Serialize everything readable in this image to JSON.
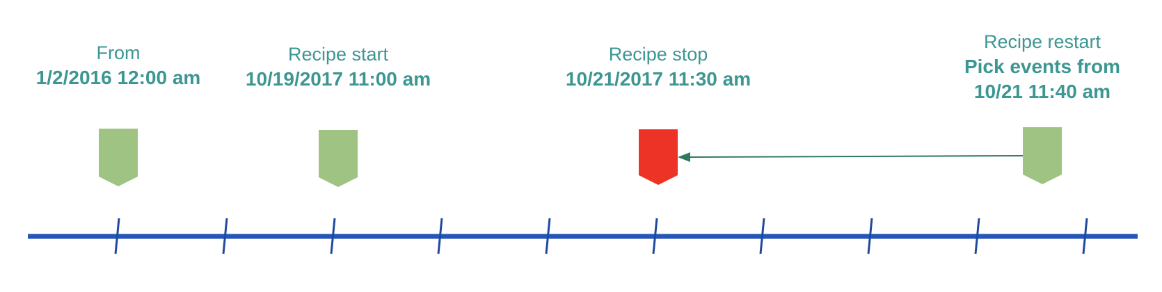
{
  "colors": {
    "text": "#3d9692",
    "timeline": "#2754b8",
    "tick": "#1e4a9e",
    "marker_normal": "#9ec383",
    "marker_stop": "#ec3325",
    "arrow": "#2d7a5c"
  },
  "timeline": {
    "tick_count": 10
  },
  "events": [
    {
      "id": "from",
      "caption": "From",
      "lines": [
        "1/2/2016 12:00 am"
      ],
      "marker_status": "normal"
    },
    {
      "id": "recipe-start",
      "caption": "Recipe start",
      "lines": [
        "10/19/2017 11:00 am"
      ],
      "marker_status": "normal"
    },
    {
      "id": "recipe-stop",
      "caption": "Recipe stop",
      "lines": [
        "10/21/2017 11:30 am"
      ],
      "marker_status": "stop"
    },
    {
      "id": "recipe-restart",
      "caption": "Recipe restart",
      "lines": [
        "Pick events from",
        "10/21 11:40 am"
      ],
      "marker_status": "normal"
    }
  ],
  "arrow": {
    "from_event": "recipe-restart",
    "to_event": "recipe-stop"
  }
}
